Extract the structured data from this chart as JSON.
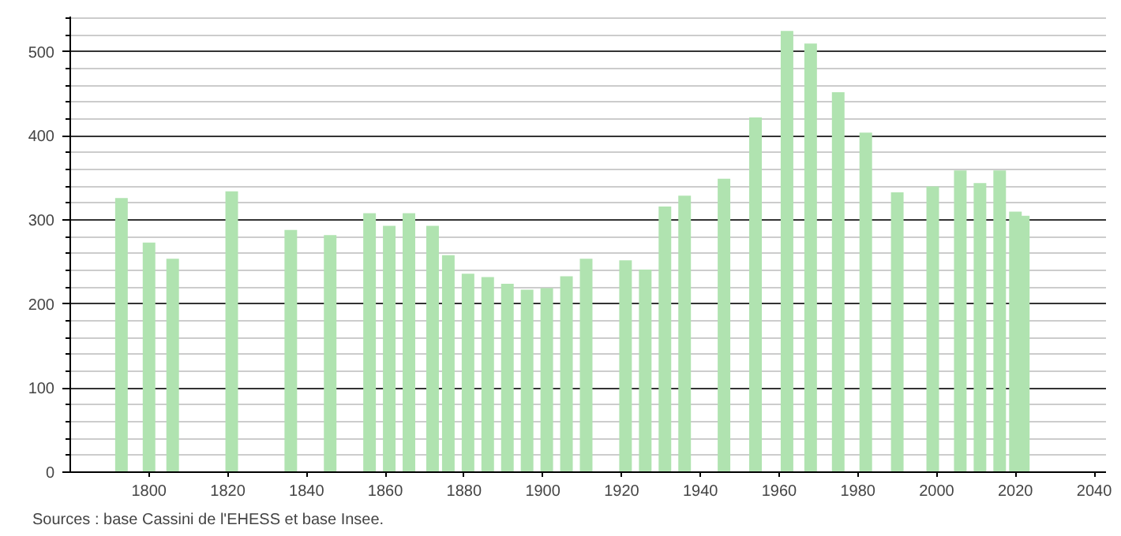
{
  "chart_data": {
    "type": "bar",
    "x": [
      1793,
      1800,
      1806,
      1821,
      1836,
      1846,
      1856,
      1861,
      1866,
      1872,
      1876,
      1881,
      1886,
      1891,
      1896,
      1901,
      1906,
      1911,
      1921,
      1926,
      1931,
      1936,
      1946,
      1954,
      1962,
      1968,
      1975,
      1982,
      1990,
      1999,
      2006,
      2011,
      2016,
      2020,
      2022
    ],
    "values": [
      326,
      273,
      254,
      334,
      288,
      282,
      308,
      293,
      308,
      293,
      258,
      236,
      232,
      224,
      217,
      219,
      233,
      254,
      252,
      241,
      316,
      329,
      349,
      422,
      525,
      510,
      452,
      404,
      333,
      340,
      359,
      344,
      359,
      310,
      305
    ],
    "color": "#b0e3b0",
    "xlim": [
      1780,
      2043
    ],
    "xticks": [
      1800,
      1820,
      1840,
      1860,
      1880,
      1900,
      1920,
      1940,
      1960,
      1980,
      2000,
      2020,
      2040
    ],
    "ylim": [
      0,
      542
    ],
    "yticks": [
      0,
      {
        "value": 20,
        "label": null
      },
      {
        "value": 40,
        "label": null
      },
      {
        "value": 60,
        "label": null
      },
      {
        "value": 80,
        "label": null
      },
      100,
      {
        "value": 120,
        "label": null
      },
      {
        "value": 140,
        "label": null
      },
      {
        "value": 160,
        "label": null
      },
      {
        "value": 180,
        "label": null
      },
      200,
      {
        "value": 220,
        "label": null
      },
      {
        "value": 240,
        "label": null
      },
      {
        "value": 260,
        "label": null
      },
      {
        "value": 280,
        "label": null
      },
      300,
      {
        "value": 320,
        "label": null
      },
      {
        "value": 340,
        "label": null
      },
      {
        "value": 360,
        "label": null
      },
      {
        "value": 380,
        "label": null
      },
      400,
      {
        "value": 420,
        "label": null
      },
      {
        "value": 440,
        "label": null
      },
      {
        "value": 460,
        "label": null
      },
      {
        "value": 480,
        "label": null
      },
      500,
      {
        "value": 520,
        "label": null
      },
      {
        "value": 540,
        "label": null
      }
    ],
    "grid": "y",
    "annotations": [
      "Sources : base Cassini de l'EHESS et base Insee."
    ]
  }
}
